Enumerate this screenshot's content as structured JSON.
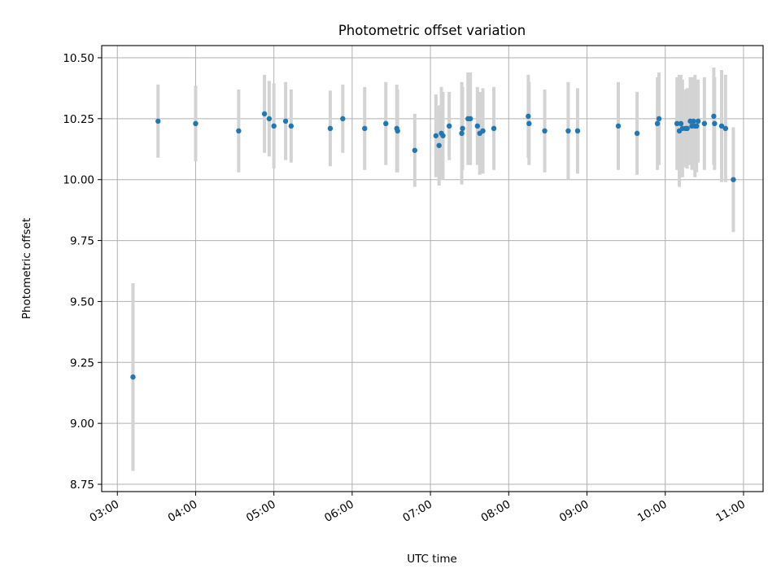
{
  "chart_data": {
    "type": "scatter",
    "title": "Photometric offset variation",
    "xlabel": "UTC time",
    "ylabel": "Photometric offset",
    "x_unit": "UTC hours",
    "xlim": [
      2.8,
      11.25
    ],
    "ylim": [
      8.72,
      10.55
    ],
    "x_ticks": [
      3,
      4,
      5,
      6,
      7,
      8,
      9,
      10,
      11
    ],
    "x_tick_labels": [
      "03:00",
      "04:00",
      "05:00",
      "06:00",
      "07:00",
      "08:00",
      "09:00",
      "10:00",
      "11:00"
    ],
    "y_ticks": [
      8.75,
      9.0,
      9.25,
      9.5,
      9.75,
      10.0,
      10.25,
      10.5
    ],
    "y_tick_labels": [
      "8.75",
      "9.00",
      "9.25",
      "9.50",
      "9.75",
      "10.00",
      "10.25",
      "10.50"
    ],
    "grid": true,
    "point_color": "#1f77b4",
    "errorbar_color": "#d3d3d3",
    "series": [
      {
        "x": [
          3.2,
          3.52,
          4.0,
          4.55,
          4.88,
          4.94,
          5.0,
          5.15,
          5.22,
          5.72,
          5.88,
          6.16,
          6.43,
          6.57,
          6.58,
          6.8,
          7.07,
          7.11,
          7.14,
          7.16,
          7.24,
          7.4,
          7.41,
          7.48,
          7.51,
          7.6,
          7.63,
          7.67,
          7.81,
          8.25,
          8.26,
          8.46,
          8.76,
          8.88,
          9.4,
          9.64,
          9.9,
          9.92,
          10.15,
          10.18,
          10.2,
          10.22,
          10.26,
          10.28,
          10.32,
          10.34,
          10.36,
          10.38,
          10.4,
          10.42,
          10.5,
          10.62,
          10.63,
          10.72,
          10.77,
          10.87
        ],
        "y": [
          9.19,
          10.24,
          10.23,
          10.2,
          10.27,
          10.25,
          10.22,
          10.24,
          10.22,
          10.21,
          10.25,
          10.21,
          10.23,
          10.21,
          10.2,
          10.12,
          10.18,
          10.14,
          10.19,
          10.18,
          10.22,
          10.19,
          10.21,
          10.25,
          10.25,
          10.22,
          10.19,
          10.2,
          10.21,
          10.26,
          10.23,
          10.2,
          10.2,
          10.2,
          10.22,
          10.19,
          10.23,
          10.25,
          10.23,
          10.2,
          10.23,
          10.21,
          10.21,
          10.21,
          10.24,
          10.22,
          10.24,
          10.22,
          10.22,
          10.24,
          10.23,
          10.26,
          10.23,
          10.22,
          10.21,
          10.0
        ],
        "err": [
          0.385,
          0.15,
          0.155,
          0.17,
          0.16,
          0.155,
          0.175,
          0.16,
          0.15,
          0.155,
          0.14,
          0.17,
          0.17,
          0.18,
          0.17,
          0.15,
          0.17,
          0.165,
          0.19,
          0.18,
          0.14,
          0.21,
          0.17,
          0.19,
          0.19,
          0.16,
          0.17,
          0.175,
          0.17,
          0.17,
          0.17,
          0.17,
          0.2,
          0.175,
          0.18,
          0.17,
          0.19,
          0.19,
          0.19,
          0.23,
          0.2,
          0.2,
          0.16,
          0.165,
          0.18,
          0.18,
          0.18,
          0.21,
          0.19,
          0.17,
          0.19,
          0.2,
          0.19,
          0.23,
          0.22,
          0.215
        ]
      }
    ]
  }
}
